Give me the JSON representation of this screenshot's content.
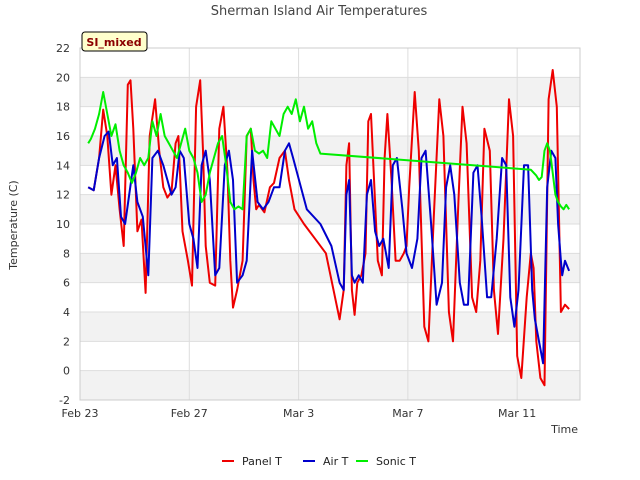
{
  "chart_data": {
    "type": "line",
    "title": "Sherman Island Air Temperatures",
    "xlabel": "Time",
    "ylabel": "Temperature (C)",
    "badge": "SI_mixed",
    "x_range_days": [
      0,
      18.3
    ],
    "ylim": [
      -2,
      22
    ],
    "y_ticks": [
      -2,
      0,
      2,
      4,
      6,
      8,
      10,
      12,
      14,
      16,
      18,
      20,
      22
    ],
    "x_ticks": [
      {
        "day": 0,
        "label": "Feb 23"
      },
      {
        "day": 4,
        "label": "Feb 27"
      },
      {
        "day": 8,
        "label": "Mar 3"
      },
      {
        "day": 12,
        "label": "Mar 7"
      },
      {
        "day": 16,
        "label": "Mar 11"
      }
    ],
    "grid": true,
    "legend_position": "bottom",
    "series": [
      {
        "name": "Panel T",
        "color": "#ee0000",
        "x": [
          0.3,
          0.5,
          0.7,
          0.85,
          1.0,
          1.15,
          1.3,
          1.45,
          1.6,
          1.75,
          1.85,
          1.95,
          2.1,
          2.25,
          2.4,
          2.55,
          2.75,
          2.9,
          3.05,
          3.2,
          3.35,
          3.5,
          3.6,
          3.75,
          3.95,
          4.1,
          4.25,
          4.4,
          4.5,
          4.6,
          4.75,
          4.95,
          5.1,
          5.25,
          5.4,
          5.5,
          5.6,
          5.75,
          5.95,
          6.1,
          6.25,
          6.35,
          6.45,
          6.55,
          6.75,
          6.95,
          7.1,
          7.3,
          7.5,
          7.65,
          7.85,
          8.2,
          8.6,
          9.0,
          9.5,
          9.65,
          9.75,
          9.85,
          9.95,
          10.05,
          10.15,
          10.3,
          10.45,
          10.55,
          10.65,
          10.75,
          10.9,
          11.05,
          11.15,
          11.25,
          11.4,
          11.55,
          11.7,
          11.85,
          11.95,
          12.05,
          12.25,
          12.4,
          12.6,
          12.75,
          12.95,
          13.15,
          13.3,
          13.5,
          13.65,
          13.85,
          14.0,
          14.15,
          14.35,
          14.5,
          14.65,
          14.8,
          15.0,
          15.15,
          15.3,
          15.5,
          15.7,
          15.85,
          16.0,
          16.15,
          16.35,
          16.5,
          16.6,
          16.7,
          16.85,
          17.0,
          17.15,
          17.3,
          17.45,
          17.6,
          17.75,
          17.9
        ],
        "values": [
          12.5,
          12.3,
          14.5,
          17.8,
          16.0,
          12.0,
          14.0,
          11.0,
          8.5,
          19.5,
          19.8,
          16.5,
          9.5,
          10.3,
          5.3,
          16.0,
          18.5,
          15.0,
          12.5,
          11.8,
          12.2,
          15.5,
          16.0,
          9.5,
          7.5,
          5.8,
          18.0,
          19.8,
          15.0,
          8.5,
          6.0,
          5.8,
          16.5,
          18.0,
          13.5,
          7.5,
          4.3,
          5.5,
          7.5,
          16.0,
          16.5,
          13.0,
          11.0,
          11.3,
          10.8,
          12.5,
          12.8,
          14.5,
          15.0,
          13.0,
          11.0,
          10.0,
          9.0,
          8.0,
          3.5,
          5.5,
          14.0,
          15.5,
          5.5,
          3.8,
          6.0,
          6.5,
          8.0,
          17.0,
          17.5,
          13.5,
          7.5,
          6.5,
          14.5,
          17.5,
          13.0,
          7.5,
          7.5,
          8.0,
          8.5,
          12.5,
          19.0,
          15.0,
          3.0,
          2.0,
          10.5,
          18.5,
          16.0,
          4.0,
          2.0,
          11.5,
          18.0,
          15.5,
          5.0,
          4.0,
          7.5,
          16.5,
          15.0,
          5.5,
          2.5,
          9.0,
          18.5,
          16.0,
          1.0,
          -0.5,
          5.0,
          8.0,
          7.0,
          2.0,
          -0.5,
          -1.0,
          18.5,
          20.5,
          18.0,
          4.0,
          4.5,
          4.2
        ]
      },
      {
        "name": "Air T",
        "color": "#0000cc",
        "x": [
          0.3,
          0.5,
          0.7,
          0.9,
          1.05,
          1.2,
          1.35,
          1.5,
          1.65,
          1.8,
          1.95,
          2.1,
          2.3,
          2.5,
          2.65,
          2.85,
          3.05,
          3.2,
          3.35,
          3.5,
          3.65,
          3.8,
          4.0,
          4.15,
          4.3,
          4.45,
          4.6,
          4.75,
          4.95,
          5.1,
          5.3,
          5.45,
          5.6,
          5.75,
          5.95,
          6.1,
          6.3,
          6.5,
          6.7,
          6.9,
          7.1,
          7.3,
          7.5,
          7.65,
          7.8,
          8.3,
          8.8,
          9.2,
          9.5,
          9.65,
          9.75,
          9.85,
          9.95,
          10.05,
          10.2,
          10.35,
          10.5,
          10.65,
          10.8,
          10.95,
          11.1,
          11.3,
          11.45,
          11.6,
          11.8,
          11.95,
          12.15,
          12.35,
          12.5,
          12.65,
          12.85,
          13.05,
          13.25,
          13.4,
          13.55,
          13.7,
          13.9,
          14.05,
          14.2,
          14.4,
          14.55,
          14.7,
          14.9,
          15.05,
          15.25,
          15.45,
          15.6,
          15.75,
          15.9,
          16.05,
          16.25,
          16.4,
          16.55,
          16.65,
          16.8,
          16.95,
          17.1,
          17.25,
          17.4,
          17.5,
          17.6,
          17.65,
          17.75,
          17.9
        ],
        "values": [
          12.5,
          12.3,
          14.5,
          16.0,
          16.3,
          14.0,
          14.5,
          10.5,
          10.0,
          12.0,
          14.0,
          11.5,
          10.5,
          6.5,
          14.5,
          15.0,
          14.0,
          13.0,
          12.0,
          12.5,
          15.0,
          14.5,
          10.0,
          9.0,
          7.0,
          14.0,
          15.0,
          13.0,
          6.5,
          7.0,
          14.0,
          15.0,
          13.0,
          6.0,
          6.5,
          7.5,
          15.0,
          11.5,
          11.0,
          11.5,
          12.5,
          12.5,
          15.0,
          15.5,
          14.5,
          11.0,
          10.0,
          8.5,
          6.0,
          5.5,
          12.0,
          13.0,
          6.5,
          6.0,
          6.5,
          6.0,
          12.0,
          13.0,
          9.5,
          8.5,
          9.0,
          7.0,
          14.0,
          14.5,
          11.0,
          8.0,
          7.0,
          9.0,
          14.5,
          15.0,
          10.0,
          4.5,
          6.0,
          12.5,
          14.0,
          12.0,
          6.0,
          4.5,
          4.5,
          13.5,
          14.0,
          10.5,
          5.0,
          5.0,
          9.0,
          14.5,
          14.0,
          5.0,
          3.0,
          5.5,
          14.0,
          14.0,
          5.5,
          3.5,
          2.0,
          0.5,
          12.5,
          15.0,
          14.5,
          10.0,
          7.5,
          6.5,
          7.5,
          6.8
        ]
      },
      {
        "name": "Sonic T",
        "color": "#00ee00",
        "x": [
          0.3,
          0.4,
          0.55,
          0.7,
          0.85,
          1.0,
          1.15,
          1.3,
          1.45,
          1.6,
          1.75,
          1.9,
          2.05,
          2.2,
          2.35,
          2.5,
          2.65,
          2.8,
          2.95,
          3.1,
          3.25,
          3.4,
          3.55,
          3.7,
          3.85,
          4.0,
          4.15,
          4.3,
          4.45,
          4.6,
          4.75,
          4.9,
          5.05,
          5.2,
          5.35,
          5.5,
          5.65,
          5.8,
          5.95,
          6.1,
          6.25,
          6.4,
          6.55,
          6.7,
          6.85,
          7.0,
          7.15,
          7.3,
          7.45,
          7.6,
          7.75,
          7.9,
          8.05,
          8.2,
          8.35,
          8.5,
          8.65,
          8.8,
          16.5,
          16.6,
          16.7,
          16.8,
          16.9,
          17.0,
          17.1,
          17.2,
          17.3,
          17.4,
          17.5,
          17.6,
          17.7,
          17.8,
          17.9
        ],
        "values": [
          15.5,
          15.8,
          16.5,
          17.5,
          19.0,
          17.5,
          16.0,
          16.8,
          15.0,
          14.0,
          13.5,
          12.8,
          13.5,
          14.5,
          14.0,
          14.5,
          17.0,
          16.0,
          17.5,
          16.0,
          15.5,
          15.0,
          14.5,
          15.5,
          16.5,
          15.0,
          14.5,
          13.5,
          11.5,
          12.0,
          13.5,
          14.5,
          15.5,
          16.0,
          14.0,
          11.5,
          11.0,
          11.2,
          11.0,
          16.0,
          16.5,
          15.0,
          14.8,
          15.0,
          14.5,
          17.0,
          16.5,
          16.0,
          17.5,
          18.0,
          17.5,
          18.5,
          17.0,
          18.0,
          16.5,
          17.0,
          15.5,
          14.8,
          13.7,
          13.5,
          13.3,
          13.0,
          13.2,
          15.0,
          15.5,
          15.0,
          13.5,
          12.0,
          11.5,
          11.2,
          11.0,
          11.3,
          11.0
        ]
      }
    ]
  }
}
